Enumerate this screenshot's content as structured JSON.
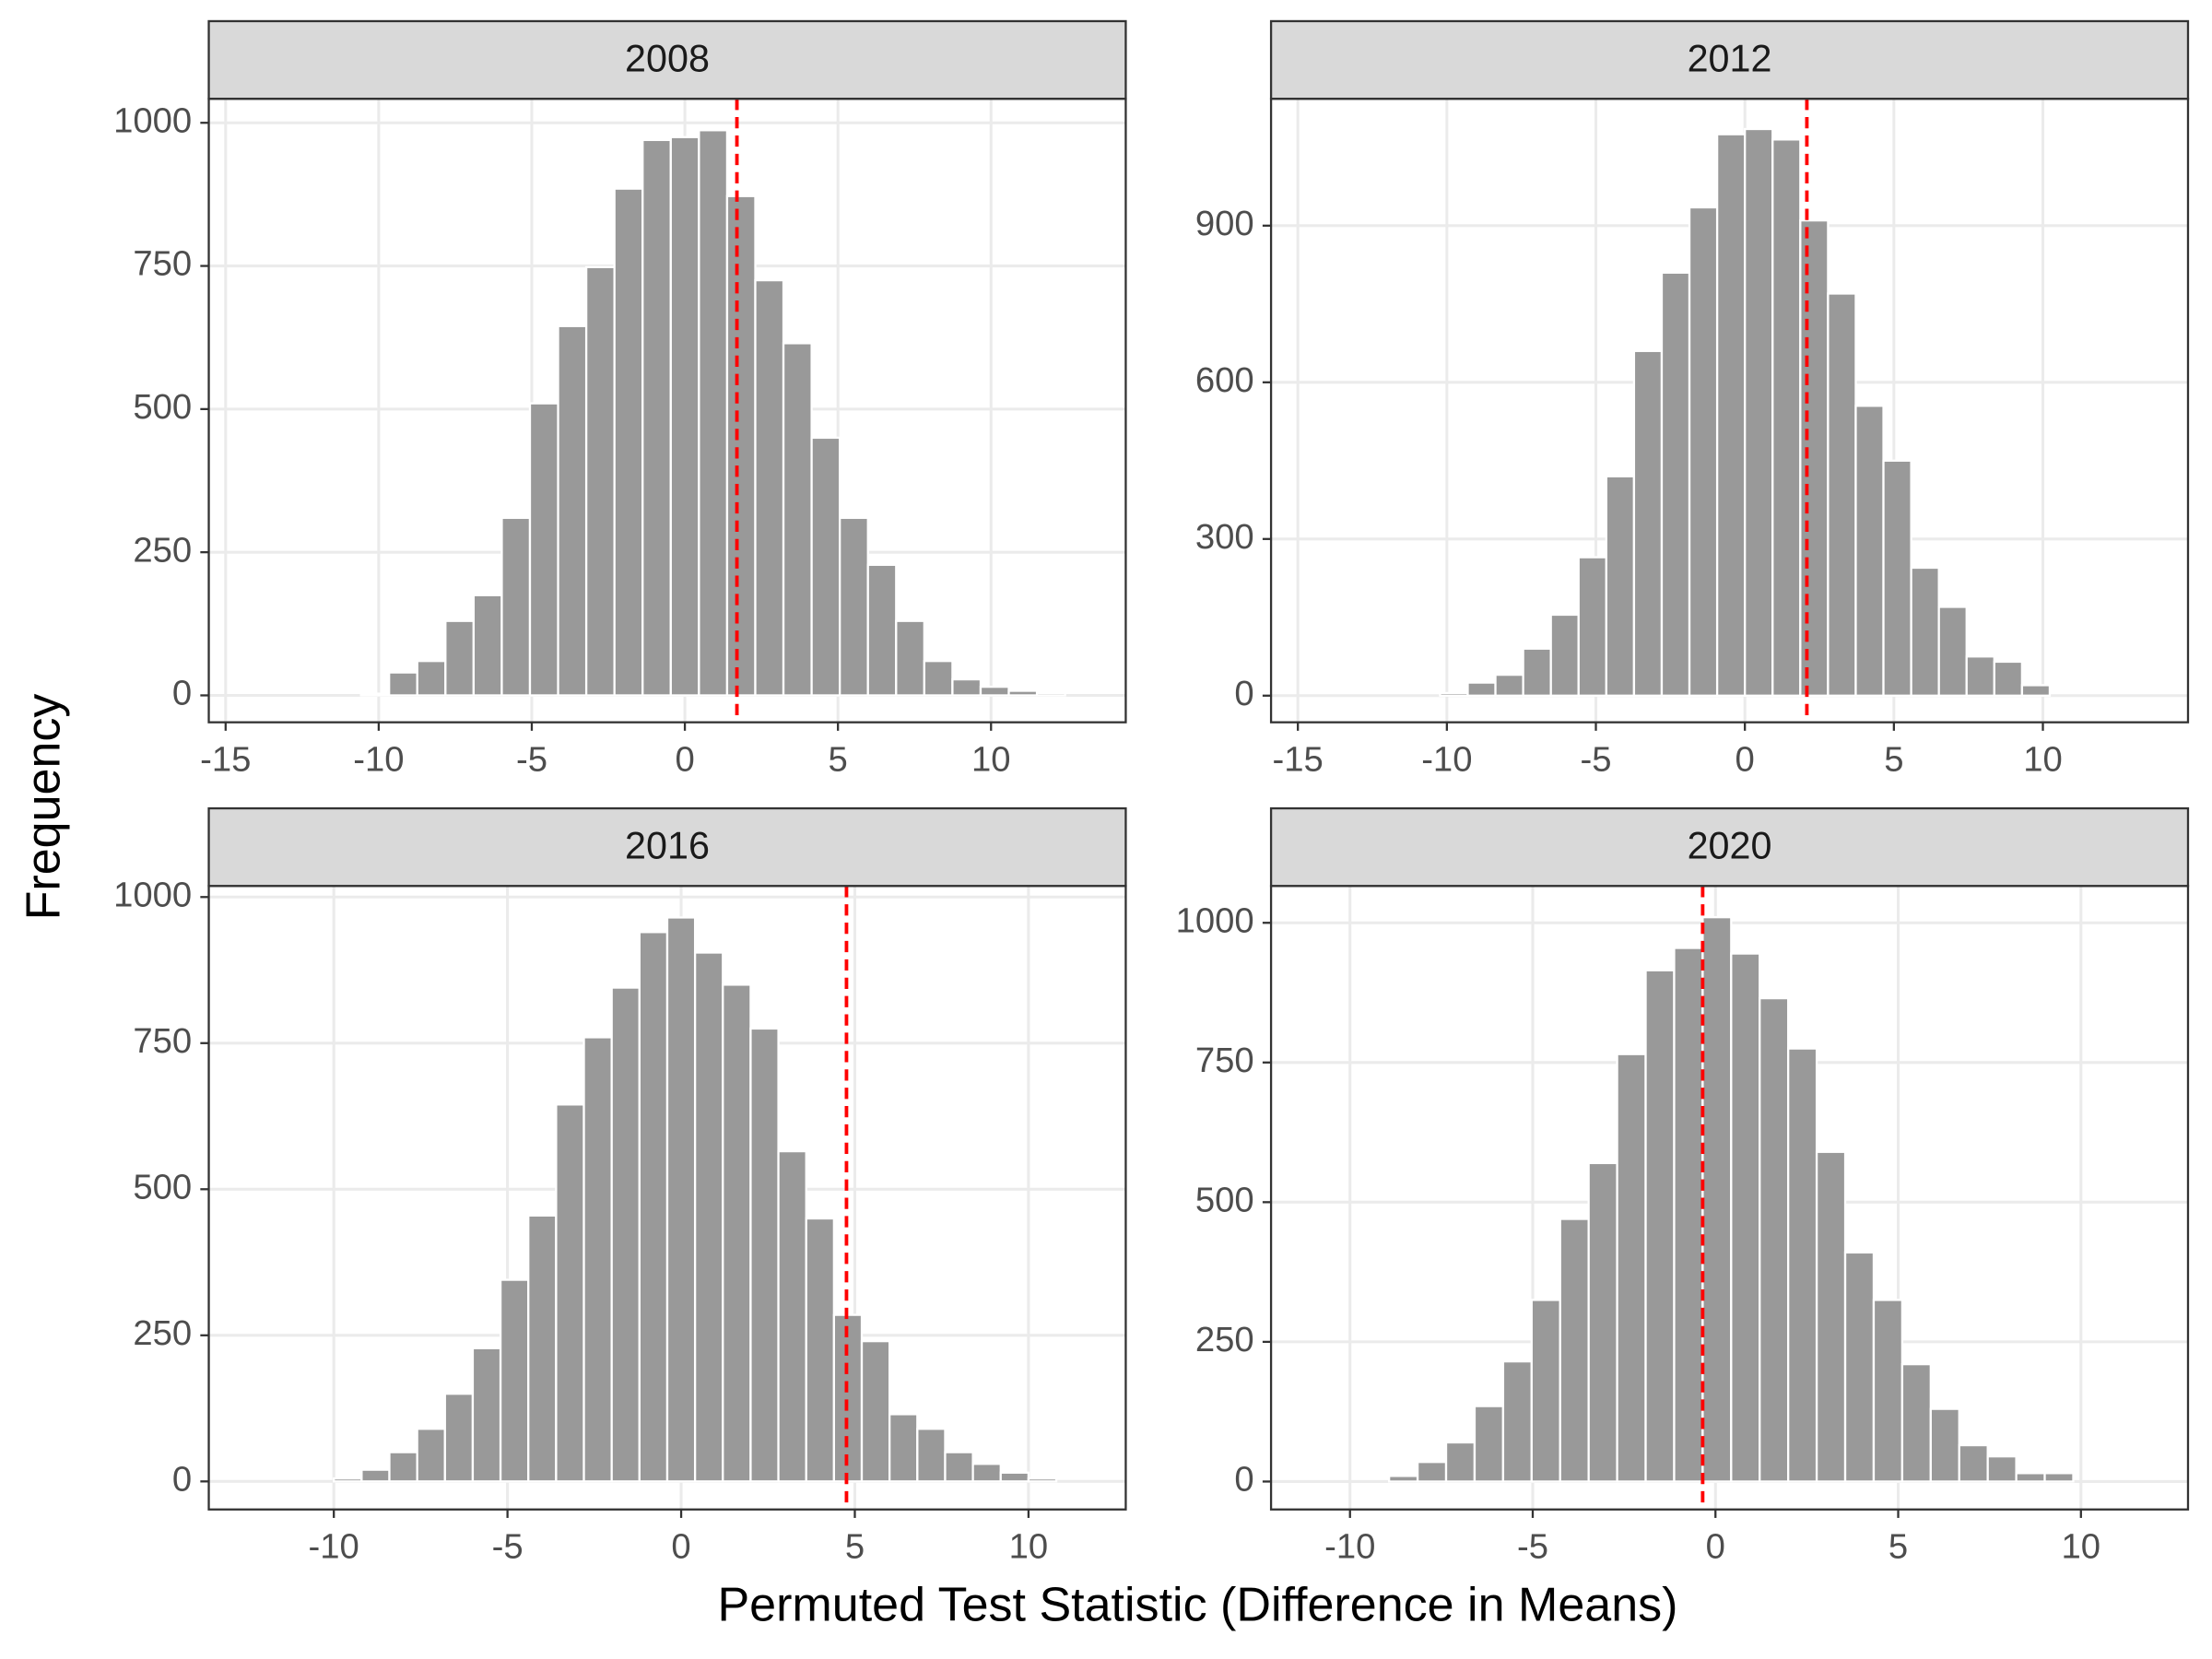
{
  "axis_labels": {
    "x": "Permuted Test Statistic (Difference in Means)",
    "y": "Frequency"
  },
  "chart_data": [
    {
      "type": "histogram",
      "title": "2008",
      "color": "#999999",
      "bins": [
        -10.58,
        -9.66,
        -8.74,
        -7.82,
        -6.9,
        -5.98,
        -5.06,
        -4.14,
        -3.22,
        -2.3,
        -1.38,
        -0.46,
        0.46,
        1.38,
        2.3,
        3.22,
        4.14,
        5.06,
        5.98,
        6.9,
        7.82,
        8.74,
        9.66,
        10.58,
        11.5,
        12.42
      ],
      "values": [
        3,
        40,
        60,
        130,
        175,
        310,
        510,
        645,
        748,
        885,
        970,
        975,
        987,
        872,
        725,
        615,
        450,
        310,
        228,
        130,
        60,
        28,
        15,
        8,
        4
      ],
      "vline": 1.7,
      "vline_color": "#ff0000",
      "xlim": [
        -15.55,
        14.4
      ],
      "ylim": [
        -47,
        1042
      ],
      "xticks": [
        -15,
        -10,
        -5,
        0,
        5,
        10
      ],
      "yticks": [
        0,
        250,
        500,
        750,
        1000
      ]
    },
    {
      "type": "histogram",
      "title": "2012",
      "color": "#999999",
      "bins": [
        -10.23,
        -9.3,
        -8.37,
        -7.44,
        -6.51,
        -5.58,
        -4.65,
        -3.72,
        -2.79,
        -1.86,
        -0.93,
        0,
        0.93,
        1.86,
        2.79,
        3.72,
        4.65,
        5.58,
        6.51,
        7.44,
        8.37,
        9.3,
        10.23
      ],
      "values": [
        5,
        25,
        40,
        90,
        155,
        265,
        420,
        660,
        810,
        935,
        1075,
        1085,
        1065,
        910,
        770,
        555,
        450,
        245,
        170,
        75,
        65,
        20
      ],
      "vline": 2.08,
      "vline_color": "#ff0000",
      "xlim": [
        -15.9,
        14.87
      ],
      "ylim": [
        -51,
        1143
      ],
      "xticks": [
        -15,
        -10,
        -5,
        0,
        5,
        10
      ],
      "yticks": [
        0,
        300,
        600,
        900
      ]
    },
    {
      "type": "histogram",
      "title": "2016",
      "color": "#999999",
      "bins": [
        -10,
        -9.2,
        -8.4,
        -7.6,
        -6.8,
        -6,
        -5.2,
        -4.4,
        -3.6,
        -2.8,
        -2,
        -1.2,
        -0.4,
        0.4,
        1.2,
        2,
        2.8,
        3.6,
        4.4,
        5.2,
        6,
        6.8,
        7.6,
        8.4,
        9.2,
        10,
        10.8
      ],
      "values": [
        5,
        20,
        50,
        90,
        150,
        228,
        345,
        455,
        645,
        760,
        845,
        940,
        965,
        905,
        850,
        775,
        565,
        450,
        285,
        240,
        115,
        90,
        50,
        30,
        15,
        5
      ],
      "vline": 4.76,
      "vline_color": "#ff0000",
      "xlim": [
        -13.6,
        12.8
      ],
      "ylim": [
        -48,
        1019
      ],
      "xticks": [
        -10,
        -5,
        0,
        5,
        10
      ],
      "yticks": [
        0,
        250,
        500,
        750,
        1000
      ]
    },
    {
      "type": "histogram",
      "title": "2020",
      "color": "#999999",
      "bins": [
        -8.93,
        -8.15,
        -7.37,
        -6.59,
        -5.81,
        -5.03,
        -4.25,
        -3.47,
        -2.69,
        -1.91,
        -1.13,
        -0.35,
        0.43,
        1.21,
        1.99,
        2.77,
        3.55,
        4.33,
        5.11,
        5.89,
        6.67,
        7.45,
        8.23,
        9.01,
        9.79
      ],
      "values": [
        10,
        35,
        70,
        135,
        215,
        325,
        470,
        570,
        765,
        915,
        955,
        1010,
        945,
        865,
        775,
        590,
        410,
        325,
        210,
        130,
        65,
        45,
        15,
        15
      ],
      "vline": -0.35,
      "vline_color": "#ff0000",
      "xlim": [
        -12.16,
        12.93
      ],
      "ylim": [
        -50,
        1066
      ],
      "xticks": [
        -10,
        -5,
        0,
        5,
        10
      ],
      "yticks": [
        0,
        250,
        500,
        750,
        1000
      ]
    }
  ]
}
